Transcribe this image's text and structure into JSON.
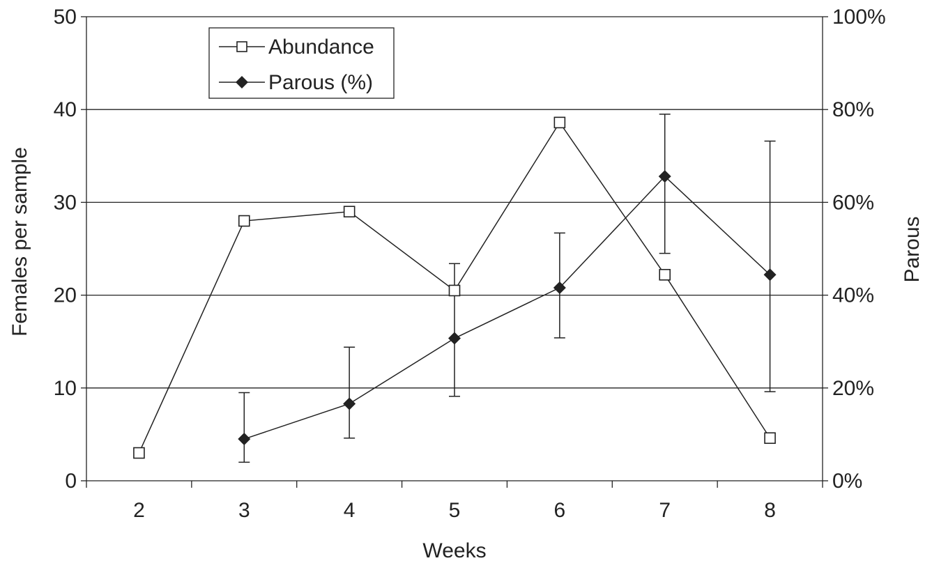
{
  "chart_data": {
    "type": "line",
    "xlabel": "Weeks",
    "ylabel_left": "Females per sample",
    "ylabel_right": "Parous",
    "x_ticks": [
      "2",
      "3",
      "4",
      "5",
      "6",
      "7",
      "8"
    ],
    "x_range": [
      2,
      8
    ],
    "y_left_range": [
      0,
      50
    ],
    "y_left_ticks": [
      "0",
      "10",
      "20",
      "30",
      "40",
      "50"
    ],
    "y_right_range": [
      0,
      100
    ],
    "y_right_ticks": [
      "0%",
      "20%",
      "40%",
      "60%",
      "80%",
      "100%"
    ],
    "grid": "horizontal",
    "legend_position": "top-left",
    "series": [
      {
        "name": "Abundance",
        "axis": "left",
        "marker": "open-square",
        "x": [
          2,
          3,
          4,
          5,
          6,
          7,
          8
        ],
        "y": [
          3.0,
          28.0,
          29.0,
          20.5,
          38.6,
          22.2,
          4.6
        ]
      },
      {
        "name": "Parous (%)",
        "axis": "right",
        "marker": "filled-diamond",
        "x": [
          3,
          4,
          5,
          6,
          7,
          8
        ],
        "y": [
          9,
          16.6,
          30.7,
          41.6,
          65.6,
          44.4
        ],
        "err_low": [
          4,
          9.2,
          18.2,
          30.8,
          49.0,
          19.2
        ],
        "err_high": [
          19.0,
          28.8,
          46.8,
          53.4,
          79.0,
          73.2
        ]
      }
    ]
  }
}
